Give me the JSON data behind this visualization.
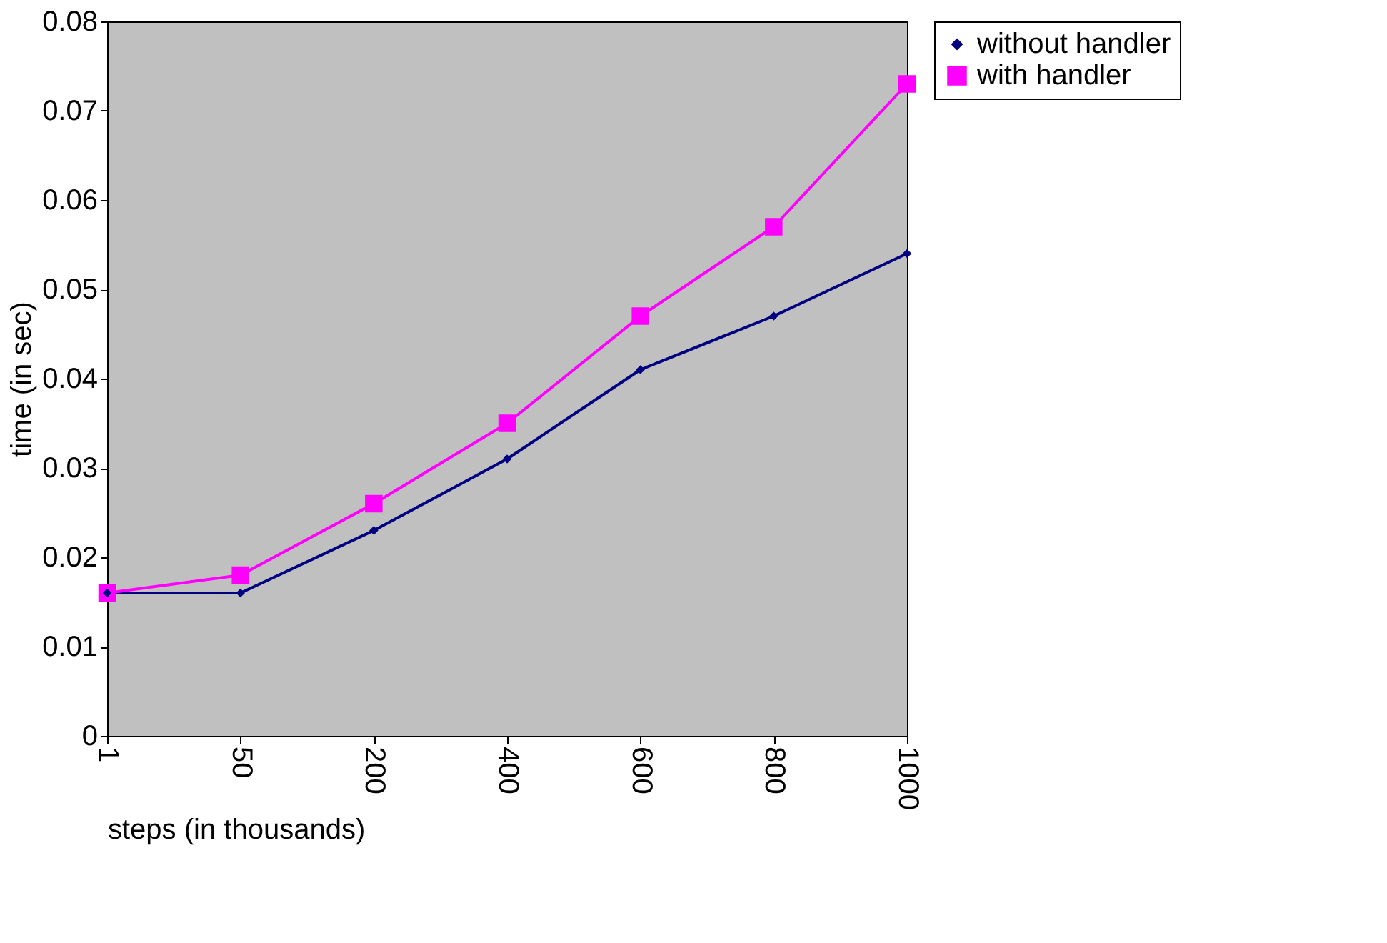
{
  "chart_data": {
    "type": "line",
    "categories": [
      "1",
      "50",
      "200",
      "400",
      "600",
      "800",
      "1000"
    ],
    "series": [
      {
        "name": "without handler",
        "color": "#000080",
        "marker": "diamond",
        "values": [
          0.016,
          0.016,
          0.023,
          0.031,
          0.041,
          0.047,
          0.054
        ]
      },
      {
        "name": "with handler",
        "color": "#ff00ff",
        "marker": "square",
        "values": [
          0.016,
          0.018,
          0.026,
          0.035,
          0.047,
          0.057,
          0.073
        ]
      }
    ],
    "xlabel": "steps (in thousands)",
    "ylabel": "time (in sec)",
    "ylim": [
      0,
      0.08
    ],
    "yticks": [
      0,
      0.01,
      0.02,
      0.03,
      0.04,
      0.05,
      0.06,
      0.07,
      0.08
    ],
    "grid": false,
    "legend": "right",
    "line_style": "solid"
  }
}
